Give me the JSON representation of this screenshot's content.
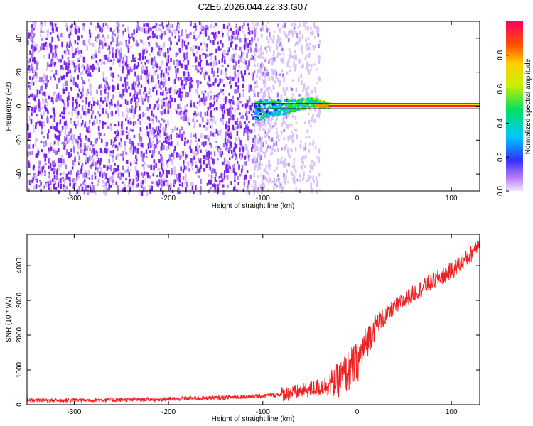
{
  "title": "C2E6.2026.044.22.33.G07",
  "colors": {
    "snr_line": "#ee2222",
    "noise_purple": "#7a22ee",
    "light_purple": "#d9c2fb",
    "band_line": "#000000"
  },
  "colorbar": {
    "label": "Normalized spectral amplitude",
    "range": [
      0,
      1
    ],
    "ticks": [
      0.0,
      0.2,
      0.4,
      0.6,
      0.8
    ]
  },
  "chart_data": [
    {
      "type": "heatmap",
      "xlabel": "Height of straight line (km)",
      "ylabel": "Frequency (Hz)",
      "xlim": [
        -350,
        130
      ],
      "ylim": [
        -50,
        50
      ],
      "xticks": [
        -300,
        -200,
        -100,
        0,
        100
      ],
      "yticks": [
        -40,
        -20,
        0,
        20,
        40
      ],
      "colorscale": "rainbow",
      "band_limits_hz": [
        -1.5,
        1.5
      ],
      "features": {
        "noise_region_x": [
          -350,
          -110
        ],
        "fading_noise_x": [
          -110,
          -40
        ],
        "signal_onset_x": -110,
        "signal_trace": [
          {
            "x": -110,
            "y": -2
          },
          {
            "x": -80,
            "y": 0
          },
          {
            "x": -50,
            "y": 3
          },
          {
            "x": -30,
            "y": 1
          },
          {
            "x": 0,
            "y": 0
          },
          {
            "x": 130,
            "y": 0
          }
        ]
      }
    },
    {
      "type": "line",
      "xlabel": "Height of straight line (km)",
      "ylabel": "SNR (10 * v/v)",
      "xlim": [
        -350,
        130
      ],
      "ylim": [
        0,
        4900
      ],
      "xticks": [
        -300,
        -200,
        -100,
        0,
        100
      ],
      "yticks": [
        0,
        1000,
        2000,
        3000,
        4000
      ],
      "series": [
        {
          "x": [
            -350,
            -300,
            -250,
            -200,
            -150,
            -100,
            -80,
            -60,
            -40,
            -20,
            0,
            10,
            20,
            40,
            60,
            80,
            100,
            120,
            130
          ],
          "y": [
            120,
            130,
            140,
            160,
            200,
            250,
            300,
            380,
            500,
            700,
            1200,
            1800,
            2300,
            2800,
            3200,
            3550,
            3850,
            4300,
            4750
          ]
        }
      ]
    }
  ]
}
